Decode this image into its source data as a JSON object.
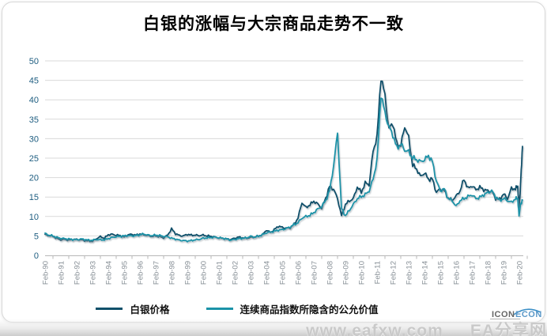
{
  "title": "白银的涨幅与大宗商品走势不一致",
  "watermark": {
    "url_text": "www.eafxw.com",
    "site_name": "EA分享网",
    "logo_text": "ICON",
    "logo_accent": "ECON"
  },
  "colors": {
    "silver_line": "#11506a",
    "fair_value_line": "#1b93a8",
    "grid": "#d9d9d9",
    "axis": "#b7b7b7",
    "y_tick_label": "#1e5d80",
    "x_tick_label": "#878f96"
  },
  "chart_data": {
    "type": "line",
    "title": "白银的涨幅与大宗商品走势不一致",
    "ylim": [
      0,
      50
    ],
    "ytick_step": 5,
    "grid": "horizontal",
    "legend_position": "bottom",
    "x_labels": [
      "Feb-90",
      "Feb-91",
      "Feb-92",
      "Feb-93",
      "Feb-94",
      "Feb-95",
      "Feb-96",
      "Feb-97",
      "Feb-98",
      "Feb-99",
      "Feb-00",
      "Feb-01",
      "Feb-02",
      "Feb-03",
      "Feb-04",
      "Feb-05",
      "Feb-06",
      "Feb-07",
      "Feb-08",
      "Feb-09",
      "Feb-10",
      "Feb-11",
      "Feb-12",
      "Feb-13",
      "Feb-14",
      "Feb-15",
      "Feb-16",
      "Feb-17",
      "Feb-18",
      "Feb-19",
      "Feb-20"
    ],
    "x_start": 1990.1,
    "x_step": 0.25,
    "x_count": 120,
    "x_tail": [
      2020.0,
      2020.08,
      2020.15,
      2020.22,
      2020.3
    ],
    "series": [
      {
        "name": "白银价格",
        "color": "#11506a",
        "values": [
          5.3,
          5.1,
          4.9,
          4.3,
          4.0,
          4.1,
          3.9,
          4.1,
          4.1,
          4.0,
          3.8,
          3.7,
          3.6,
          4.3,
          4.8,
          4.4,
          5.3,
          5.4,
          5.2,
          5.1,
          4.7,
          5.3,
          5.4,
          5.2,
          5.5,
          5.3,
          5.1,
          4.9,
          5.0,
          4.8,
          4.5,
          5.2,
          6.8,
          5.6,
          5.1,
          5.0,
          5.4,
          5.2,
          5.2,
          5.1,
          5.2,
          5.0,
          4.9,
          4.7,
          4.5,
          4.4,
          4.2,
          4.1,
          4.4,
          4.7,
          4.5,
          4.4,
          4.6,
          4.7,
          5.0,
          5.3,
          6.5,
          5.9,
          6.6,
          7.5,
          7.2,
          7.0,
          7.1,
          8.0,
          9.6,
          13.6,
          12.3,
          13.0,
          13.9,
          13.2,
          12.1,
          14.7,
          17.7,
          17.0,
          14.6,
          10.2,
          13.1,
          14.0,
          14.6,
          17.6,
          16.2,
          18.6,
          18.2,
          26.8,
          30.5,
          46.0,
          41.0,
          32.5,
          34.0,
          28.6,
          28.2,
          33.2,
          30.2,
          23.2,
          22.2,
          20.3,
          21.2,
          19.6,
          19.6,
          16.2,
          17.1,
          16.6,
          14.7,
          14.2,
          15.2,
          16.6,
          19.6,
          17.2,
          17.9,
          16.9,
          17.5,
          16.9,
          16.6,
          16.5,
          14.6,
          14.4,
          15.8,
          14.6,
          17.2,
          17.1,
          17.8,
          12.2,
          16.0,
          22.0,
          28.0
        ]
      },
      {
        "name": "连续商品指数所隐含的公允价值",
        "color": "#1b93a8",
        "values": [
          5.6,
          5.2,
          5.0,
          4.6,
          4.4,
          4.3,
          4.2,
          4.1,
          4.0,
          4.2,
          4.1,
          3.9,
          3.9,
          4.1,
          4.0,
          4.0,
          4.3,
          4.6,
          4.8,
          4.9,
          5.0,
          5.1,
          5.0,
          5.1,
          5.3,
          5.5,
          5.2,
          5.1,
          5.2,
          5.1,
          4.9,
          4.8,
          4.4,
          4.2,
          3.9,
          3.8,
          3.7,
          3.8,
          4.0,
          4.1,
          4.4,
          4.5,
          4.6,
          4.7,
          4.5,
          4.4,
          4.2,
          3.9,
          4.1,
          4.3,
          4.4,
          4.5,
          4.9,
          4.7,
          4.9,
          5.3,
          5.8,
          6.0,
          6.2,
          6.5,
          6.6,
          6.9,
          7.3,
          7.9,
          8.4,
          9.6,
          10.0,
          10.3,
          11.0,
          11.9,
          12.6,
          14.1,
          16.6,
          23.0,
          31.5,
          12.0,
          10.2,
          11.6,
          13.1,
          14.6,
          15.1,
          15.6,
          16.6,
          19.6,
          24.5,
          41.5,
          36.5,
          33.0,
          31.0,
          27.6,
          28.6,
          27.1,
          26.6,
          25.1,
          24.6,
          24.1,
          24.6,
          25.6,
          24.1,
          19.1,
          16.6,
          17.1,
          14.6,
          14.1,
          12.6,
          14.1,
          14.6,
          15.1,
          15.6,
          14.6,
          14.9,
          15.6,
          16.1,
          16.6,
          15.1,
          14.1,
          14.6,
          14.1,
          13.6,
          14.6,
          14.6,
          10.0,
          12.5,
          13.5,
          14.2
        ]
      }
    ]
  }
}
